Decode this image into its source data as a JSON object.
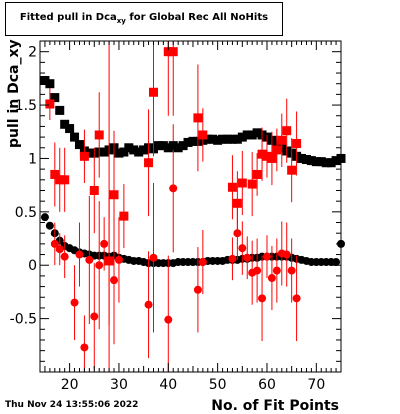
{
  "title": {
    "prefix": "Fitted pull in Dca",
    "sub": "xy",
    "suffix": " for Global Rec All NoHits"
  },
  "timestamp": "Thu Nov 24 13:55:06 2022",
  "chart_data": {
    "type": "scatter",
    "title": "Fitted pull in Dca_xy for Global Rec All NoHits",
    "xlabel": "No. of Fit Points",
    "ylabel": "pull in Dca_xy",
    "xlim": [
      14,
      75
    ],
    "ylim": [
      -1,
      2.1
    ],
    "x_ticks": [
      20,
      30,
      40,
      50,
      60,
      70
    ],
    "y_ticks": [
      -0.5,
      0,
      0.5,
      1,
      1.5,
      2
    ],
    "grid": false,
    "series": [
      {
        "color": "#000000",
        "marker": "circle",
        "x": [
          15,
          16,
          17,
          18,
          19,
          20,
          21,
          22,
          23,
          24,
          25,
          26,
          27,
          28,
          29,
          30,
          31,
          32,
          33,
          34,
          35,
          36,
          37,
          38,
          39,
          40,
          41,
          42,
          43,
          44,
          45,
          46,
          47,
          48,
          49,
          50,
          51,
          52,
          53,
          54,
          55,
          56,
          57,
          58,
          59,
          60,
          61,
          62,
          63,
          64,
          65,
          66,
          67,
          68,
          69,
          70,
          71,
          72,
          73,
          74,
          75
        ],
        "y": [
          0.45,
          0.37,
          0.3,
          0.23,
          0.18,
          0.16,
          0.14,
          0.12,
          0.11,
          0.1,
          0.09,
          0.09,
          0.09,
          0.08,
          0.09,
          0.07,
          0.06,
          0.05,
          0.04,
          0.04,
          0.03,
          0.02,
          0.02,
          0.02,
          0.02,
          0.02,
          0.02,
          0.03,
          0.03,
          0.03,
          0.03,
          0.03,
          0.03,
          0.04,
          0.04,
          0.04,
          0.04,
          0.05,
          0.05,
          0.05,
          0.06,
          0.06,
          0.07,
          0.07,
          0.08,
          0.08,
          0.08,
          0.08,
          0.08,
          0.08,
          0.07,
          0.06,
          0.05,
          0.04,
          0.03,
          0.03,
          0.03,
          0.03,
          0.03,
          0.03,
          0.2
        ],
        "yerr": [
          0.01,
          0.01,
          0.01,
          0.01,
          0.01,
          0.01,
          0.01,
          0.01,
          0.01,
          0.01,
          0.01,
          0.01,
          0.01,
          0.01,
          0.01,
          0.01,
          0.01,
          0.01,
          0.01,
          0.01,
          0.01,
          0.01,
          0.01,
          0.01,
          0.01,
          0.01,
          0.01,
          0.01,
          0.01,
          0.01,
          0.01,
          0.01,
          0.01,
          0.01,
          0.01,
          0.01,
          0.01,
          0.01,
          0.01,
          0.01,
          0.01,
          0.01,
          0.01,
          0.01,
          0.01,
          0.01,
          0.01,
          0.01,
          0.01,
          0.01,
          0.01,
          0.01,
          0.01,
          0.01,
          0.01,
          0.01,
          0.01,
          0.01,
          0.01,
          0.01,
          0.01
        ]
      },
      {
        "color": "#ff0000",
        "marker": "circle",
        "x": [
          17,
          18,
          19,
          21,
          22,
          23,
          24,
          25,
          26,
          27,
          28,
          29,
          30,
          36,
          37,
          40,
          41,
          46,
          47,
          53,
          54,
          55,
          56,
          57,
          58,
          59,
          60,
          61,
          62,
          63,
          64,
          65,
          66
        ],
        "y": [
          0.2,
          0.15,
          0.08,
          -0.35,
          0.1,
          -0.77,
          0.05,
          -0.48,
          0.0,
          0.2,
          0.04,
          -0.14,
          0.05,
          -0.37,
          0.07,
          -0.51,
          0.72,
          -0.23,
          0.03,
          0.06,
          0.3,
          0.16,
          0.07,
          -0.07,
          -0.05,
          -0.31,
          0.08,
          -0.12,
          -0.05,
          0.11,
          0.1,
          -0.05,
          -0.31
        ],
        "yerr": [
          0.2,
          0.15,
          0.2,
          0.35,
          0.3,
          0.3,
          0.6,
          0.5,
          0.6,
          0.25,
          0.6,
          0.6,
          0.4,
          0.5,
          0.7,
          0.6,
          0.6,
          0.4,
          0.3,
          0.2,
          0.25,
          0.25,
          0.2,
          0.3,
          0.3,
          0.4,
          0.2,
          0.3,
          0.3,
          0.3,
          0.3,
          0.3,
          0.4
        ]
      },
      {
        "color": "#000000",
        "marker": "square",
        "x": [
          15,
          16,
          17,
          18,
          19,
          20,
          21,
          22,
          23,
          24,
          25,
          26,
          27,
          28,
          29,
          30,
          31,
          32,
          33,
          34,
          35,
          36,
          37,
          38,
          39,
          40,
          41,
          42,
          43,
          44,
          45,
          46,
          47,
          48,
          49,
          50,
          51,
          52,
          53,
          54,
          55,
          56,
          57,
          58,
          59,
          60,
          61,
          62,
          63,
          64,
          65,
          66,
          67,
          68,
          69,
          70,
          71,
          72,
          73,
          74,
          75
        ],
        "y": [
          1.73,
          1.7,
          1.57,
          1.45,
          1.32,
          1.28,
          1.2,
          1.13,
          1.07,
          1.05,
          1.05,
          1.06,
          1.06,
          1.08,
          1.1,
          1.05,
          1.06,
          1.1,
          1.08,
          1.06,
          1.08,
          1.1,
          1.09,
          1.12,
          1.12,
          1.1,
          1.12,
          1.1,
          1.12,
          1.15,
          1.16,
          1.16,
          1.17,
          1.18,
          1.18,
          1.17,
          1.18,
          1.18,
          1.18,
          1.18,
          1.2,
          1.22,
          1.22,
          1.24,
          1.22,
          1.2,
          1.17,
          1.13,
          1.1,
          1.07,
          1.05,
          1.02,
          1.0,
          0.99,
          0.98,
          0.97,
          0.97,
          0.96,
          0.96,
          0.98,
          1.0
        ],
        "yerr": [
          0.02,
          0.02,
          0.02,
          0.02,
          0.02,
          0.02,
          0.02,
          0.02,
          0.02,
          0.02,
          0.02,
          0.02,
          0.02,
          0.02,
          0.02,
          0.02,
          0.02,
          0.02,
          0.02,
          0.02,
          0.02,
          0.02,
          0.02,
          0.02,
          0.02,
          0.02,
          0.02,
          0.02,
          0.02,
          0.02,
          0.02,
          0.02,
          0.02,
          0.02,
          0.02,
          0.02,
          0.02,
          0.02,
          0.02,
          0.02,
          0.02,
          0.02,
          0.02,
          0.02,
          0.02,
          0.02,
          0.02,
          0.02,
          0.02,
          0.02,
          0.02,
          0.02,
          0.02,
          0.02,
          0.02,
          0.02,
          0.02,
          0.02,
          0.02,
          0.02,
          0.02
        ]
      },
      {
        "color": "#ff0000",
        "marker": "square",
        "x": [
          16,
          17,
          18,
          19,
          23,
          25,
          26,
          28,
          29,
          31,
          36,
          37,
          40,
          41,
          46,
          47,
          53,
          54,
          55,
          57,
          58,
          59,
          60,
          61,
          62,
          63,
          64,
          65,
          66
        ],
        "y": [
          1.51,
          0.85,
          0.8,
          0.8,
          1.02,
          0.7,
          1.22,
          0.04,
          0.66,
          0.46,
          0.96,
          1.62,
          2.0,
          2.0,
          1.38,
          1.22,
          0.73,
          0.58,
          0.77,
          0.76,
          0.85,
          1.04,
          1.02,
          1.0,
          1.08,
          1.17,
          1.26,
          0.89,
          1.14
        ],
        "yerr": [
          0.15,
          0.3,
          0.3,
          0.3,
          0.25,
          0.4,
          0.4,
          2.1,
          0.6,
          0.3,
          0.5,
          0.6,
          0.6,
          0.6,
          0.5,
          0.25,
          0.3,
          0.3,
          0.3,
          0.3,
          0.2,
          0.25,
          0.2,
          0.25,
          0.2,
          0.25,
          0.3,
          0.3,
          0.3
        ]
      }
    ]
  }
}
